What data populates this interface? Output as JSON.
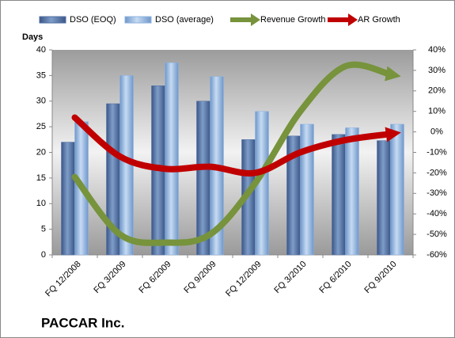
{
  "chart_data": {
    "type": "bar",
    "title": "PACCAR Inc.",
    "y_label": "Days",
    "categories": [
      "FQ 12/2008",
      "FQ 3/2009",
      "FQ 6/2009",
      "FQ 9/2009",
      "FQ 12/2009",
      "FQ 3/2010",
      "FQ 6/2010",
      "FQ 9/2010"
    ],
    "series": [
      {
        "name": "DSO (EOQ)",
        "type": "bar",
        "color": "#4f6fa3",
        "values": [
          22,
          29.5,
          33,
          30,
          22.5,
          23.2,
          23.5,
          22.3
        ]
      },
      {
        "name": "DSO (average)",
        "type": "bar",
        "color": "#8db3e2",
        "values": [
          26,
          35,
          37.5,
          34.8,
          28,
          25.5,
          24.8,
          25.5
        ]
      },
      {
        "name": "Revenue Growth",
        "type": "line",
        "axis": "y2",
        "color": "#77933c",
        "values": [
          -22,
          -50,
          -54,
          -50,
          -25,
          10,
          32,
          28
        ]
      },
      {
        "name": "AR Growth",
        "type": "line",
        "axis": "y2",
        "color": "#c00000",
        "values": [
          7,
          -12,
          -18,
          -17,
          -20,
          -10,
          -4,
          -1
        ]
      }
    ],
    "ylim": [
      0,
      40
    ],
    "yticks": [
      0,
      5,
      10,
      15,
      20,
      25,
      30,
      35,
      40
    ],
    "y2lim": [
      -60,
      40
    ],
    "y2ticks": [
      {
        "value": -60,
        "label": "-60%"
      },
      {
        "value": -50,
        "label": "-50%"
      },
      {
        "value": -40,
        "label": "-40%"
      },
      {
        "value": -30,
        "label": "-30%"
      },
      {
        "value": -20,
        "label": "-20%"
      },
      {
        "value": -10,
        "label": "-10%"
      },
      {
        "value": 0,
        "label": "0%"
      },
      {
        "value": 10,
        "label": "10%"
      },
      {
        "value": 20,
        "label": "20%"
      },
      {
        "value": 30,
        "label": "30%"
      },
      {
        "value": 40,
        "label": "40%"
      }
    ],
    "grid": false
  }
}
